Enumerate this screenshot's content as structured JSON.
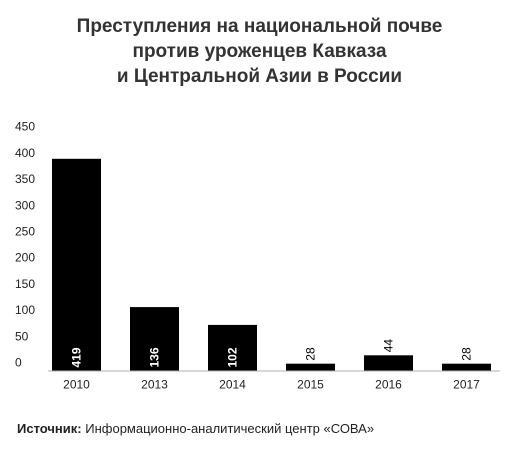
{
  "title_lines": [
    "Преступления на национальной почве",
    "против уроженцев Кавказа",
    "и Центральной Азии в России"
  ],
  "source": {
    "label": "Источник:",
    "text": "Информационно-аналитический центр «СОВА»"
  },
  "colors": {
    "bar": "#000000",
    "bar_label_inside": "#ffffff",
    "bar_label_outside": "#000000",
    "baseline": "#b0b0b0",
    "text": "#222222"
  },
  "chart_data": {
    "type": "bar",
    "categories": [
      "2010",
      "2013",
      "2014",
      "2015",
      "2016",
      "2017"
    ],
    "values": [
      419,
      136,
      102,
      28,
      44,
      28
    ],
    "displayed_heights": [
      404,
      121,
      87,
      13,
      29,
      13
    ],
    "yticks": [
      "0",
      "50",
      "100",
      "150",
      "200",
      "250",
      "300",
      "350",
      "400",
      "450"
    ],
    "ylim": [
      0,
      450
    ],
    "grid": false,
    "label_orientation": "vertical"
  }
}
